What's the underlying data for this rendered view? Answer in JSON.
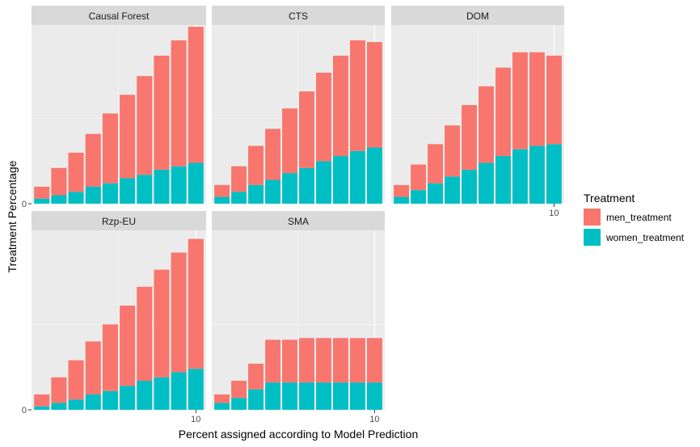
{
  "chart_data": {
    "type": "bar",
    "stacked": true,
    "facet_layout": "3 columns x 2 rows",
    "xlabel": "Percent assigned according to Model Prediction",
    "ylabel": "Treatment Percentage",
    "x": [
      1,
      2,
      3,
      4,
      5,
      6,
      7,
      8,
      9,
      10
    ],
    "x_tick_label": "10",
    "y_tick_label": "0",
    "ylim": [
      0,
      1.05
    ],
    "grid": true,
    "legend": {
      "title": "Treatment",
      "position": "right",
      "entries": [
        {
          "name": "men_treatment",
          "color": "#F8766D"
        },
        {
          "name": "women_treatment",
          "color": "#00BFC4"
        }
      ]
    },
    "panels": [
      {
        "name": "Causal Forest",
        "series": [
          {
            "name": "men_treatment",
            "values": [
              0.07,
              0.16,
              0.23,
              0.31,
              0.41,
              0.49,
              0.58,
              0.67,
              0.74,
              0.8
            ]
          },
          {
            "name": "women_treatment",
            "values": [
              0.03,
              0.05,
              0.07,
              0.1,
              0.12,
              0.15,
              0.17,
              0.2,
              0.22,
              0.24
            ]
          }
        ]
      },
      {
        "name": "CTS",
        "series": [
          {
            "name": "men_treatment",
            "values": [
              0.07,
              0.15,
              0.23,
              0.3,
              0.38,
              0.45,
              0.52,
              0.59,
              0.65,
              0.62
            ]
          },
          {
            "name": "women_treatment",
            "values": [
              0.04,
              0.07,
              0.11,
              0.14,
              0.18,
              0.21,
              0.25,
              0.28,
              0.31,
              0.33
            ]
          }
        ]
      },
      {
        "name": "DOM",
        "series": [
          {
            "name": "men_treatment",
            "values": [
              0.07,
              0.15,
              0.23,
              0.3,
              0.38,
              0.45,
              0.52,
              0.57,
              0.55,
              0.52
            ]
          },
          {
            "name": "women_treatment",
            "values": [
              0.04,
              0.08,
              0.12,
              0.16,
              0.2,
              0.24,
              0.28,
              0.32,
              0.34,
              0.35
            ]
          }
        ]
      },
      {
        "name": "Rzp-EU",
        "series": [
          {
            "name": "men_treatment",
            "values": [
              0.07,
              0.15,
              0.23,
              0.31,
              0.39,
              0.47,
              0.55,
              0.63,
              0.7,
              0.76
            ]
          },
          {
            "name": "women_treatment",
            "values": [
              0.02,
              0.04,
              0.06,
              0.09,
              0.11,
              0.14,
              0.17,
              0.19,
              0.22,
              0.24
            ]
          }
        ]
      },
      {
        "name": "SMA",
        "series": [
          {
            "name": "men_treatment",
            "values": [
              0.05,
              0.1,
              0.15,
              0.25,
              0.25,
              0.26,
              0.26,
              0.26,
              0.26,
              0.26
            ]
          },
          {
            "name": "women_treatment",
            "values": [
              0.04,
              0.07,
              0.12,
              0.16,
              0.16,
              0.16,
              0.16,
              0.16,
              0.16,
              0.16
            ]
          }
        ]
      }
    ]
  }
}
